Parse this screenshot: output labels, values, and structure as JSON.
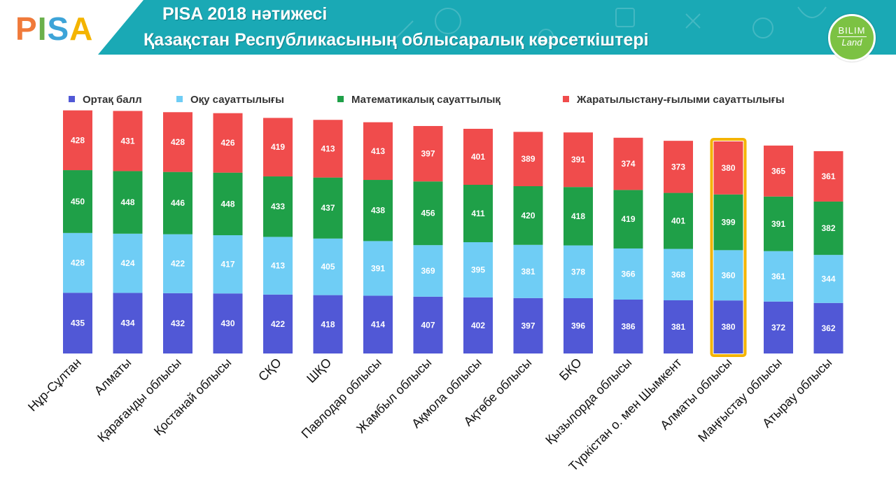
{
  "header": {
    "logo_text": "PISA",
    "title_line1": "PISA 2018 нәтижесі",
    "title_line2": "Қазақстан Республикасының облысаралық көрсеткіштері",
    "badge_line1": "BILIM",
    "badge_line2": "Land",
    "colors": {
      "teal": "#1aa9b5",
      "badge": "#7cc243"
    }
  },
  "chart_data": {
    "type": "bar",
    "stacked": true,
    "title": "",
    "xlabel": "",
    "ylabel": "",
    "legend_position": "top",
    "grid": false,
    "categories": [
      "Нұр-Сұлтан",
      "Алматы",
      "Қарағанды облысы",
      "Қостанай облысы",
      "СҚО",
      "ШҚО",
      "Павлодар облысы",
      "Жамбыл облысы",
      "Ақмола облысы",
      "Ақтөбе облысы",
      "БҚО",
      "Қызылорда облысы",
      "Түркістан о. мен Шымкент",
      "Алматы облысы",
      "Маңғыстау облысы",
      "Атырау облысы"
    ],
    "highlighted_category": "Алматы облысы",
    "series": [
      {
        "name": "Ортақ балл",
        "color": "#5158d6",
        "values": [
          435,
          434,
          432,
          430,
          422,
          418,
          414,
          407,
          402,
          397,
          396,
          386,
          381,
          380,
          372,
          362
        ]
      },
      {
        "name": "Оқу сауаттылығы",
        "color": "#6fcdf5",
        "values": [
          428,
          424,
          422,
          417,
          413,
          405,
          391,
          369,
          395,
          381,
          378,
          366,
          368,
          360,
          361,
          344
        ]
      },
      {
        "name": "Математикалық сауаттылық",
        "color": "#1fa048",
        "values": [
          450,
          448,
          446,
          448,
          433,
          437,
          438,
          456,
          411,
          420,
          418,
          419,
          401,
          399,
          391,
          382
        ]
      },
      {
        "name": "Жаратылыстану-ғылыми сауаттылығы",
        "color": "#f04c4c",
        "values": [
          428,
          431,
          428,
          426,
          419,
          413,
          413,
          397,
          401,
          389,
          391,
          374,
          373,
          380,
          365,
          361
        ]
      }
    ]
  }
}
